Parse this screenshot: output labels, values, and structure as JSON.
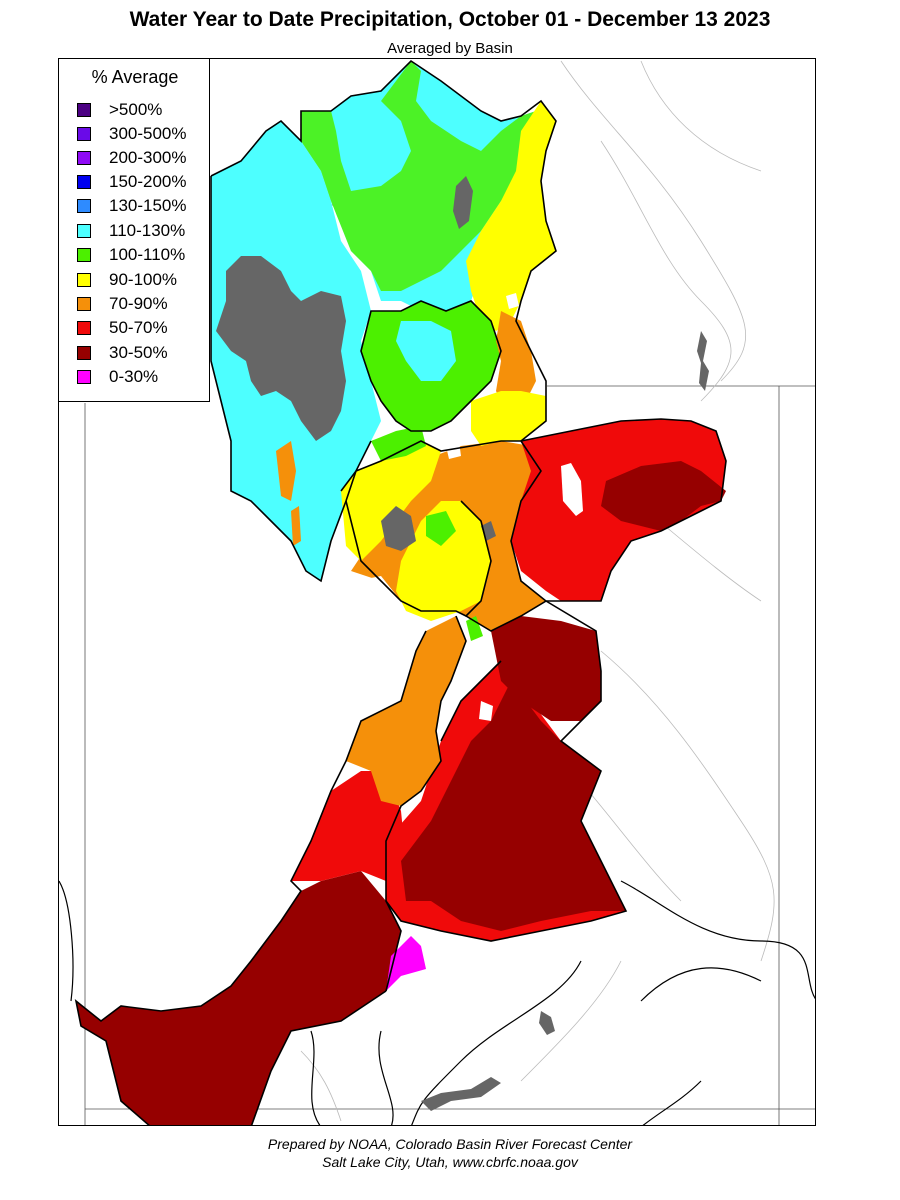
{
  "title": "Water Year to Date Precipitation, October 01  - December 13 2023",
  "subtitle": "Averaged by Basin",
  "legend": {
    "title": "% Average",
    "items": [
      {
        "label": ">500%",
        "color": "#4b0082"
      },
      {
        "label": "300-500%",
        "color": "#6a0ae8"
      },
      {
        "label": "200-300%",
        "color": "#8f0af5"
      },
      {
        "label": "150-200%",
        "color": "#0000f0"
      },
      {
        "label": "130-150%",
        "color": "#2e8bff"
      },
      {
        "label": "110-130%",
        "color": "#4dffff"
      },
      {
        "label": "100-110%",
        "color": "#4cf000"
      },
      {
        "label": "90-100%",
        "color": "#ffff00"
      },
      {
        "label": "70-90%",
        "color": "#f5900a"
      },
      {
        "label": "50-70%",
        "color": "#f00a0a"
      },
      {
        "label": "30-50%",
        "color": "#960000"
      },
      {
        "label": "0-30%",
        "color": "#ff00ff"
      }
    ]
  },
  "colors": {
    "lake": "#666666",
    "no_data": "#ffffff",
    "border": "#000000",
    "river": "#bbbbbb"
  },
  "credit": {
    "line1": "Prepared by NOAA, Colorado Basin River Forecast Center",
    "line2": "Salt Lake City, Utah, www.cbrfc.noaa.gov"
  }
}
